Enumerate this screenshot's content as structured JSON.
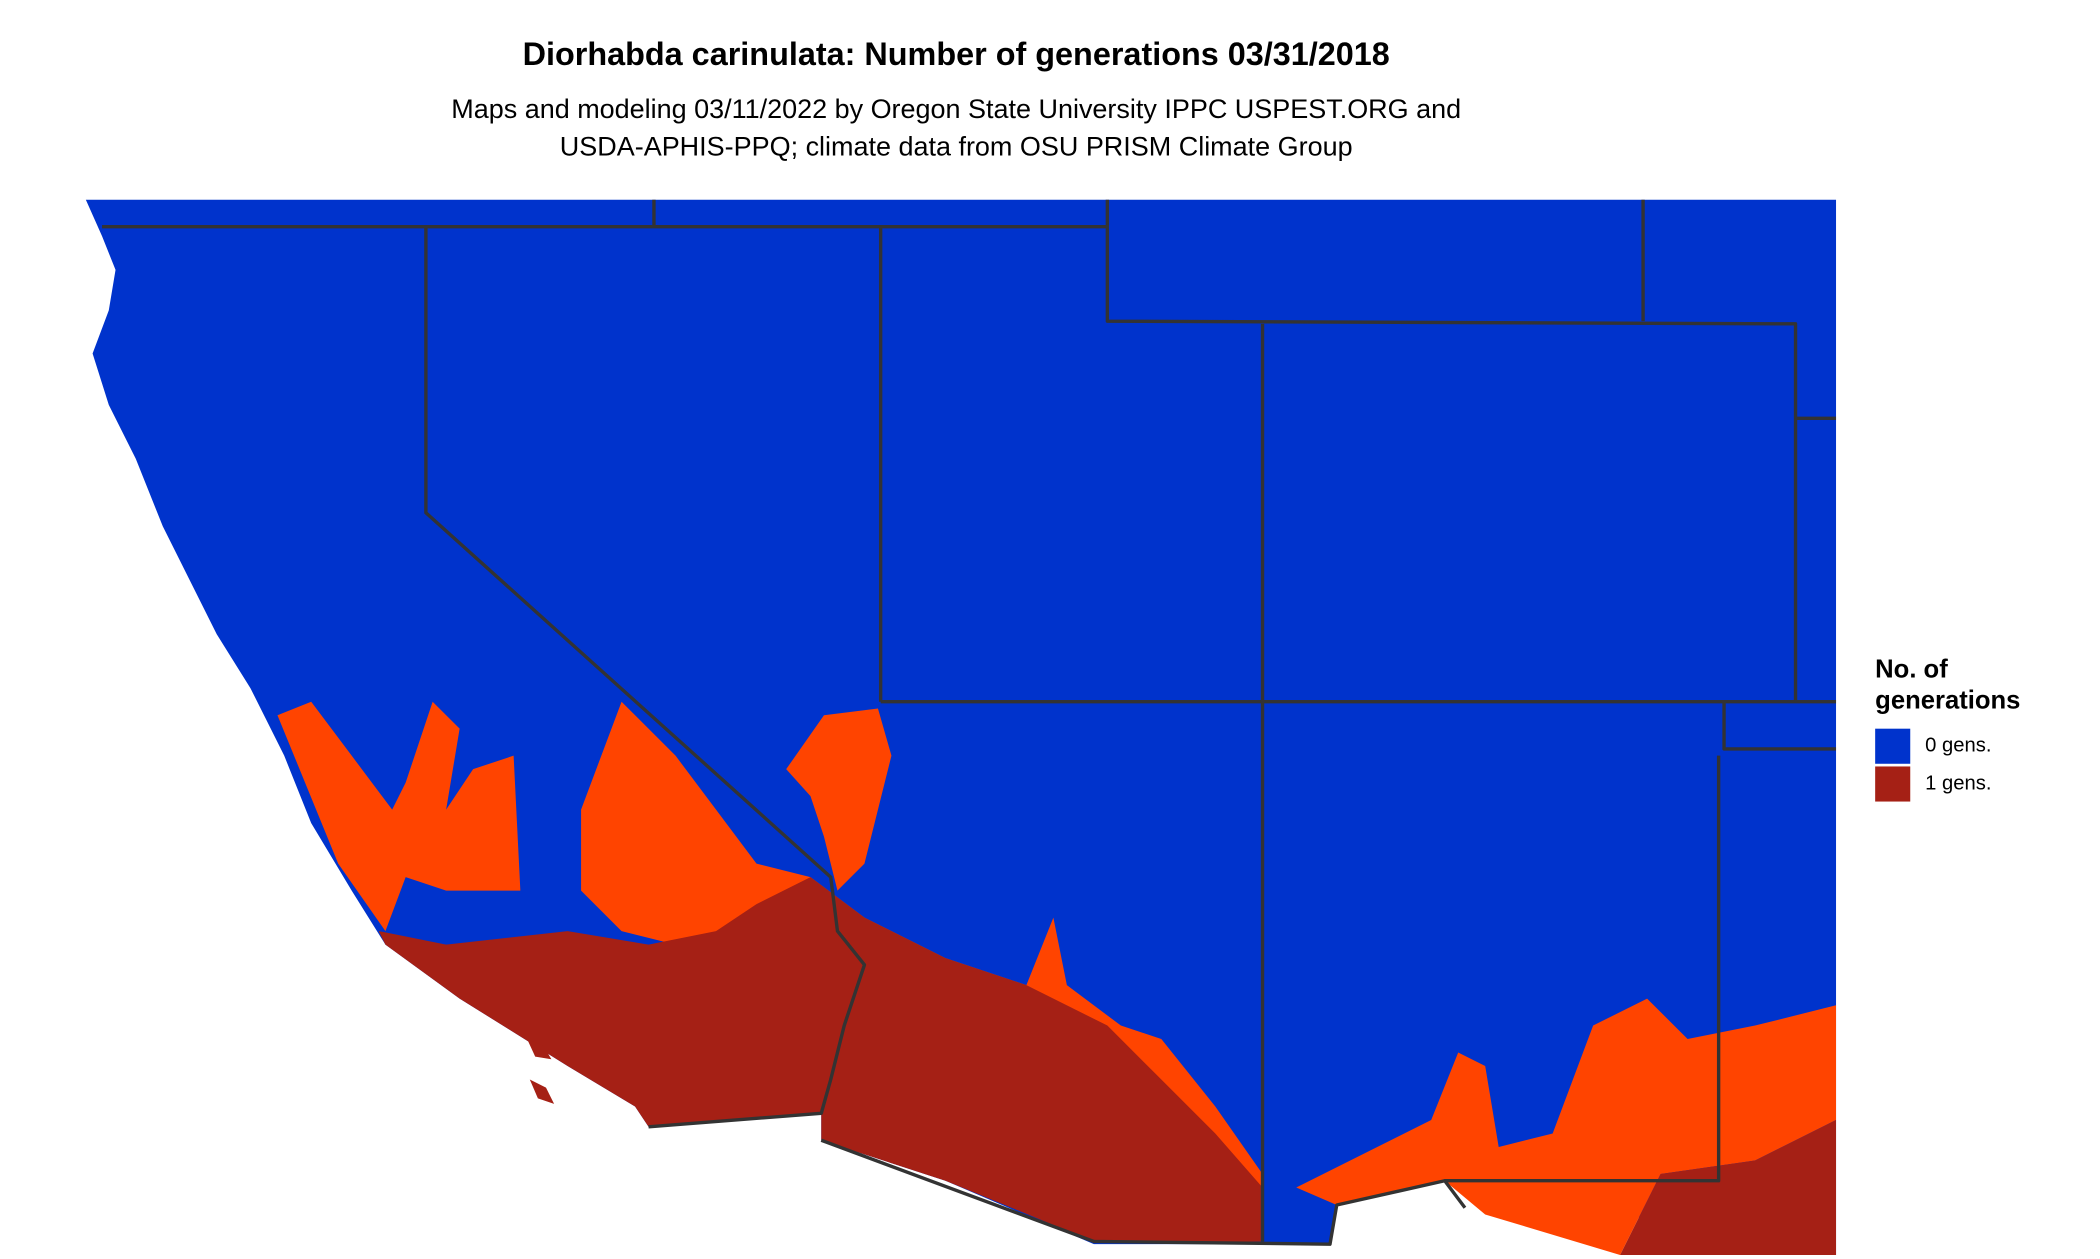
{
  "title": "Diorhabda carinulata: Number of generations 03/31/2018",
  "subtitle": [
    "Maps and modeling 03/11/2022 by Oregon State University IPPC USPEST.ORG and",
    "USDA-APHIS-PPQ; climate data from OSU PRISM Climate Group"
  ],
  "legend": {
    "title": [
      "No. of",
      "generations"
    ],
    "items": [
      {
        "label": "0 gens.",
        "color": "#0033cc"
      },
      {
        "label": "1 gens.",
        "color": "#a52015"
      }
    ]
  }
}
